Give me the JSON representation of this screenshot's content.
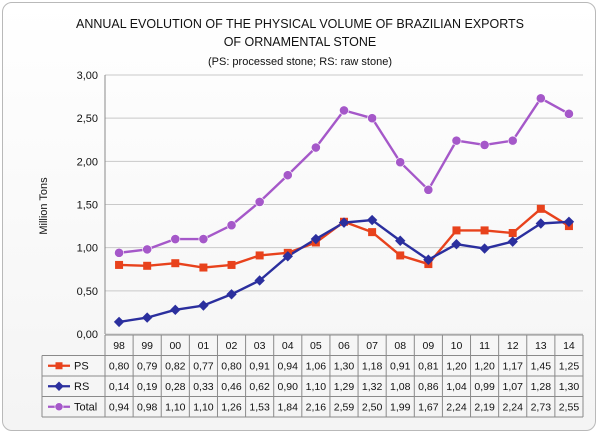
{
  "chart_data": {
    "type": "line",
    "title_line1": "ANNUAL EVOLUTION OF THE PHYSICAL VOLUME OF BRAZILIAN EXPORTS",
    "title_line2": "OF ORNAMENTAL STONE",
    "subtitle": "(PS: processed stone; RS: raw stone)",
    "ylabel": "Million Tons",
    "ylim": [
      0,
      3
    ],
    "yticks": [
      "0,00",
      "0,50",
      "1,00",
      "1,50",
      "2,00",
      "2,50",
      "3,00"
    ],
    "ytick_values": [
      0,
      0.5,
      1,
      1.5,
      2,
      2.5,
      3
    ],
    "grid": true,
    "categories": [
      "98",
      "99",
      "00",
      "01",
      "02",
      "03",
      "04",
      "05",
      "06",
      "07",
      "08",
      "09",
      "10",
      "11",
      "12",
      "13",
      "14"
    ],
    "series": [
      {
        "name": "PS",
        "color": "#e8421c",
        "marker": "square",
        "values": [
          0.8,
          0.79,
          0.82,
          0.77,
          0.8,
          0.91,
          0.94,
          1.06,
          1.3,
          1.18,
          0.91,
          0.81,
          1.2,
          1.2,
          1.17,
          1.45,
          1.25
        ],
        "labels": [
          "0,80",
          "0,79",
          "0,82",
          "0,77",
          "0,80",
          "0,91",
          "0,94",
          "1,06",
          "1,30",
          "1,18",
          "0,91",
          "0,81",
          "1,20",
          "1,20",
          "1,17",
          "1,45",
          "1,25"
        ]
      },
      {
        "name": "RS",
        "color": "#2b2f9e",
        "marker": "diamond",
        "values": [
          0.14,
          0.19,
          0.28,
          0.33,
          0.46,
          0.62,
          0.9,
          1.1,
          1.29,
          1.32,
          1.08,
          0.86,
          1.04,
          0.99,
          1.07,
          1.28,
          1.3
        ],
        "labels": [
          "0,14",
          "0,19",
          "0,28",
          "0,33",
          "0,46",
          "0,62",
          "0,90",
          "1,10",
          "1,29",
          "1,32",
          "1,08",
          "0,86",
          "1,04",
          "0,99",
          "1,07",
          "1,28",
          "1,30"
        ]
      },
      {
        "name": "Total",
        "color": "#a558c9",
        "marker": "circle",
        "values": [
          0.94,
          0.98,
          1.1,
          1.1,
          1.26,
          1.53,
          1.84,
          2.16,
          2.59,
          2.5,
          1.99,
          1.67,
          2.24,
          2.19,
          2.24,
          2.73,
          2.55
        ],
        "labels": [
          "0,94",
          "0,98",
          "1,10",
          "1,10",
          "1,26",
          "1,53",
          "1,84",
          "2,16",
          "2,59",
          "2,50",
          "1,99",
          "1,67",
          "2,24",
          "2,19",
          "2,24",
          "2,73",
          "2,55"
        ]
      }
    ]
  }
}
